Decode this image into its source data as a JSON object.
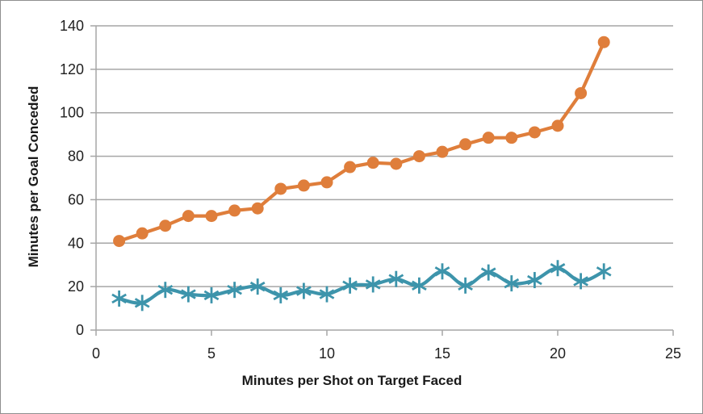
{
  "chart_data": {
    "type": "line",
    "xlabel": "Minutes per Shot on Target Faced",
    "ylabel": "Minutes per Goal Conceded",
    "xlim": [
      0,
      25
    ],
    "ylim": [
      0,
      140
    ],
    "x_ticks": [
      0,
      5,
      10,
      15,
      20,
      25
    ],
    "y_ticks": [
      0,
      20,
      40,
      60,
      80,
      100,
      120,
      140
    ],
    "grid": "horizontal-major",
    "legend": "none",
    "x": [
      1,
      2,
      3,
      4,
      5,
      6,
      7,
      8,
      9,
      10,
      11,
      12,
      13,
      14,
      15,
      16,
      17,
      18,
      19,
      20,
      21,
      22
    ],
    "series": [
      {
        "name": "orange-circle-series",
        "marker": "circle",
        "smooth": false,
        "color": "#DF7E3B",
        "values": [
          41,
          44.5,
          48,
          52.5,
          52.5,
          55,
          56,
          65,
          66.5,
          68,
          75,
          77,
          76.5,
          80,
          82,
          85.5,
          88.5,
          88.5,
          91,
          94,
          109,
          132.5
        ]
      },
      {
        "name": "teal-asterisk-series",
        "marker": "asterisk",
        "smooth": true,
        "color": "#3D94AB",
        "values": [
          14.5,
          12.5,
          18.5,
          16.5,
          16,
          18.5,
          20,
          16,
          18,
          16.5,
          20.5,
          21,
          23.5,
          20.5,
          27,
          20.5,
          26.5,
          21.5,
          23,
          28.5,
          22.5,
          27
        ]
      }
    ],
    "colors": {
      "grid": "#A6A6A6",
      "axis": "#A6A6A6",
      "text": "#1F1F1F",
      "background": "#FFFFFF"
    }
  }
}
